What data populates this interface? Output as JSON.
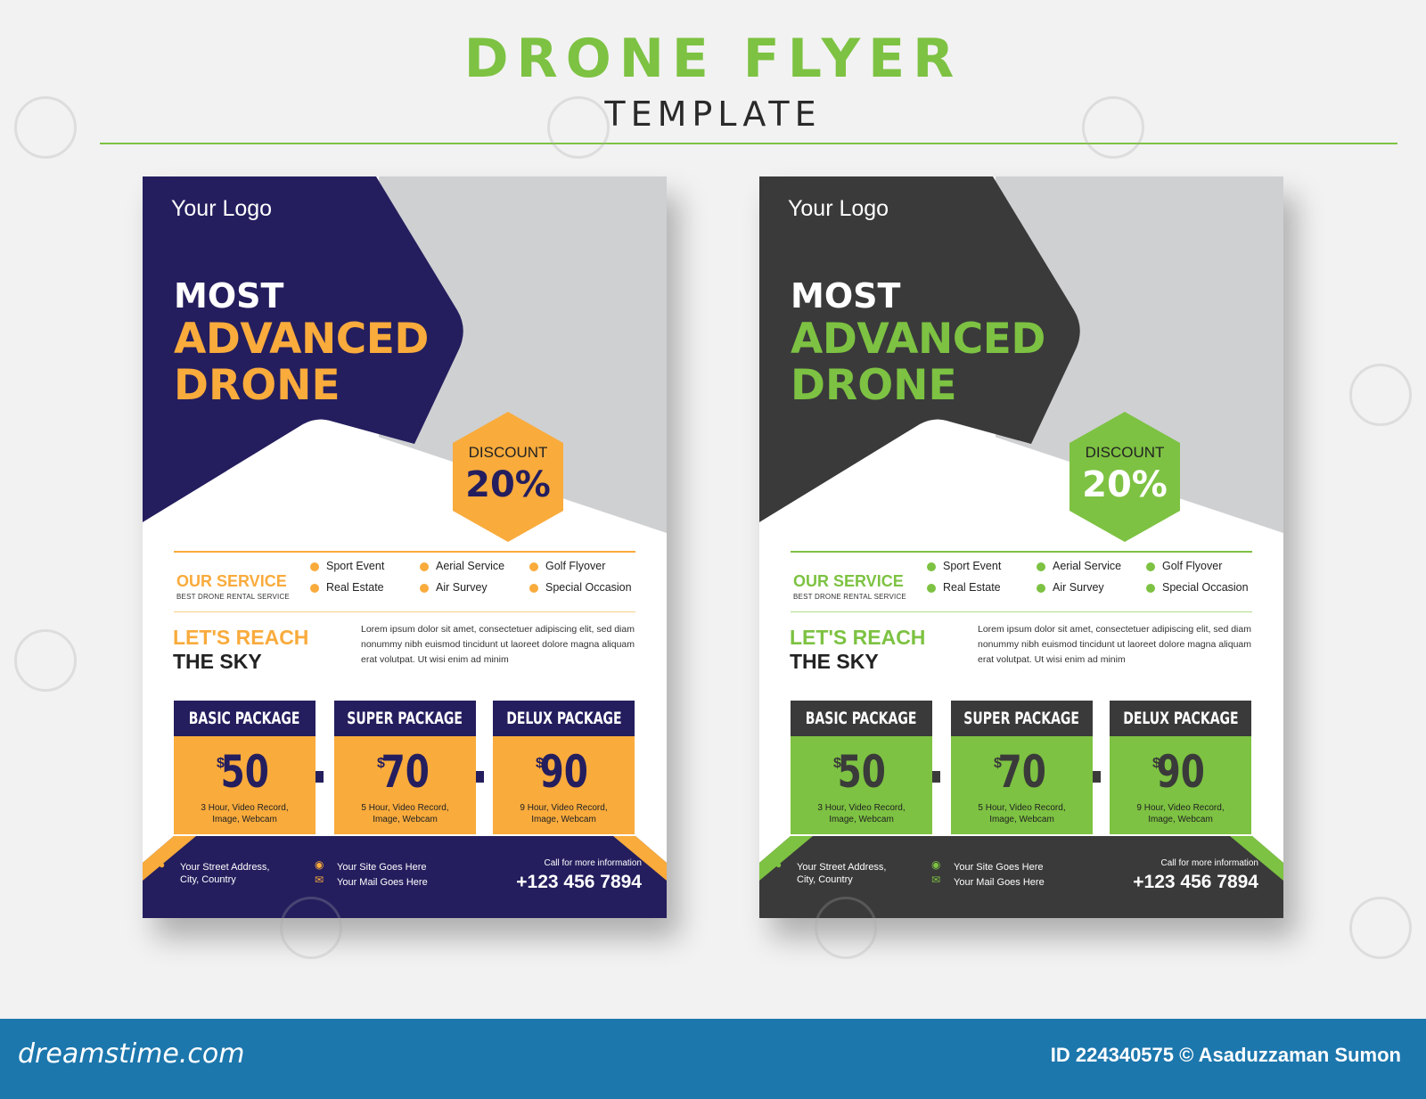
{
  "heading": {
    "title": "DRONE FLYER",
    "subtitle": "TEMPLATE"
  },
  "flyers": [
    {
      "theme": {
        "primary": "#241e5e",
        "accent": "#f9ab3c"
      },
      "logo": "Your Logo",
      "title_line1": "MOST",
      "title_line2": "ADVANCED",
      "title_line3": "DRONE",
      "discount_label": "DISCOUNT",
      "discount_value": "20%",
      "service_title": "OUR SERVICE",
      "service_subtitle": "BEST DRONE RENTAL SERVICE",
      "services": [
        "Sport Event",
        "Aerial Service",
        "Golf Flyover",
        "Real Estate",
        "Air Survey",
        "Special Occasion"
      ],
      "reach_line1": "LET'S REACH",
      "reach_line2": "THE SKY",
      "lorem": "Lorem ipsum dolor sit amet, consectetuer adipiscing elit, sed diam nonummy nibh euismod tincidunt ut laoreet dolore magna aliquam erat volutpat. Ut wisi enim ad minim",
      "packages": [
        {
          "name": "BASIC PACKAGE",
          "currency": "$",
          "price": "50",
          "desc_line1": "3 Hour, Video Record,",
          "desc_line2": "Image, Webcam"
        },
        {
          "name": "SUPER PACKAGE",
          "currency": "$",
          "price": "70",
          "desc_line1": "5 Hour, Video Record,",
          "desc_line2": "Image, Webcam"
        },
        {
          "name": "DELUX PACKAGE",
          "currency": "$",
          "price": "90",
          "desc_line1": "9 Hour, Video Record,",
          "desc_line2": "Image, Webcam"
        }
      ],
      "address_line1": "Your Street Address,",
      "address_line2": "City, Country",
      "site": "Your Site Goes Here",
      "mail": "Your Mail Goes Here",
      "call_label": "Call for more information",
      "phone": "+123 456 7894"
    },
    {
      "theme": {
        "primary": "#3a3a3a",
        "accent": "#7dc242"
      },
      "logo": "Your Logo",
      "title_line1": "MOST",
      "title_line2": "ADVANCED",
      "title_line3": "DRONE",
      "discount_label": "DISCOUNT",
      "discount_value": "20%",
      "service_title": "OUR SERVICE",
      "service_subtitle": "BEST DRONE RENTAL SERVICE",
      "services": [
        "Sport Event",
        "Aerial Service",
        "Golf Flyover",
        "Real Estate",
        "Air Survey",
        "Special Occasion"
      ],
      "reach_line1": "LET'S REACH",
      "reach_line2": "THE SKY",
      "lorem": "Lorem ipsum dolor sit amet, consectetuer adipiscing elit, sed diam nonummy nibh euismod tincidunt ut laoreet dolore magna aliquam erat volutpat. Ut wisi enim ad minim",
      "packages": [
        {
          "name": "BASIC PACKAGE",
          "currency": "$",
          "price": "50",
          "desc_line1": "3 Hour, Video Record,",
          "desc_line2": "Image, Webcam"
        },
        {
          "name": "SUPER PACKAGE",
          "currency": "$",
          "price": "70",
          "desc_line1": "5 Hour, Video Record,",
          "desc_line2": "Image, Webcam"
        },
        {
          "name": "DELUX PACKAGE",
          "currency": "$",
          "price": "90",
          "desc_line1": "9 Hour, Video Record,",
          "desc_line2": "Image, Webcam"
        }
      ],
      "address_line1": "Your Street Address,",
      "address_line2": "City, Country",
      "site": "Your Site Goes Here",
      "mail": "Your Mail Goes Here",
      "call_label": "Call for more information",
      "phone": "+123 456 7894"
    }
  ],
  "footer": {
    "site": "dreamstime.com",
    "credit": "ID 224340575 © Asaduzzaman Sumon"
  },
  "watermark_text": "dreamstime"
}
